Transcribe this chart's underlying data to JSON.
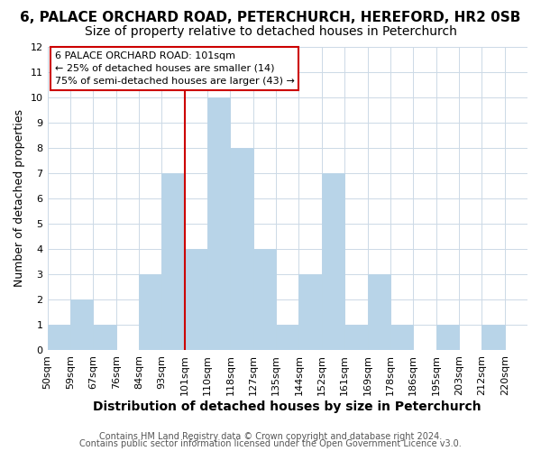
{
  "title": "6, PALACE ORCHARD ROAD, PETERCHURCH, HEREFORD, HR2 0SB",
  "subtitle": "Size of property relative to detached houses in Peterchurch",
  "xlabel": "Distribution of detached houses by size in Peterchurch",
  "ylabel": "Number of detached properties",
  "bin_edges": [
    "50sqm",
    "59sqm",
    "67sqm",
    "76sqm",
    "84sqm",
    "93sqm",
    "101sqm",
    "110sqm",
    "118sqm",
    "127sqm",
    "135sqm",
    "144sqm",
    "152sqm",
    "161sqm",
    "169sqm",
    "178sqm",
    "186sqm",
    "195sqm",
    "203sqm",
    "212sqm",
    "220sqm"
  ],
  "bar_values": [
    1,
    2,
    1,
    0,
    3,
    7,
    4,
    10,
    8,
    4,
    1,
    3,
    7,
    1,
    3,
    1,
    0,
    1,
    0,
    1
  ],
  "bar_color": "#b8d4e8",
  "highlight_color": "#cc0000",
  "highlight_bar_index": 6,
  "annotation_line1": "6 PALACE ORCHARD ROAD: 101sqm",
  "annotation_line2": "← 25% of detached houses are smaller (14)",
  "annotation_line3": "75% of semi-detached houses are larger (43) →",
  "ylim": [
    0,
    12
  ],
  "yticks": [
    0,
    1,
    2,
    3,
    4,
    5,
    6,
    7,
    8,
    9,
    10,
    11,
    12
  ],
  "footer_line1": "Contains HM Land Registry data © Crown copyright and database right 2024.",
  "footer_line2": "Contains public sector information licensed under the Open Government Licence v3.0.",
  "title_fontsize": 11,
  "subtitle_fontsize": 10,
  "xlabel_fontsize": 10,
  "ylabel_fontsize": 9,
  "tick_fontsize": 8,
  "footer_fontsize": 7,
  "background_color": "#ffffff",
  "grid_color": "#ccd9e6"
}
